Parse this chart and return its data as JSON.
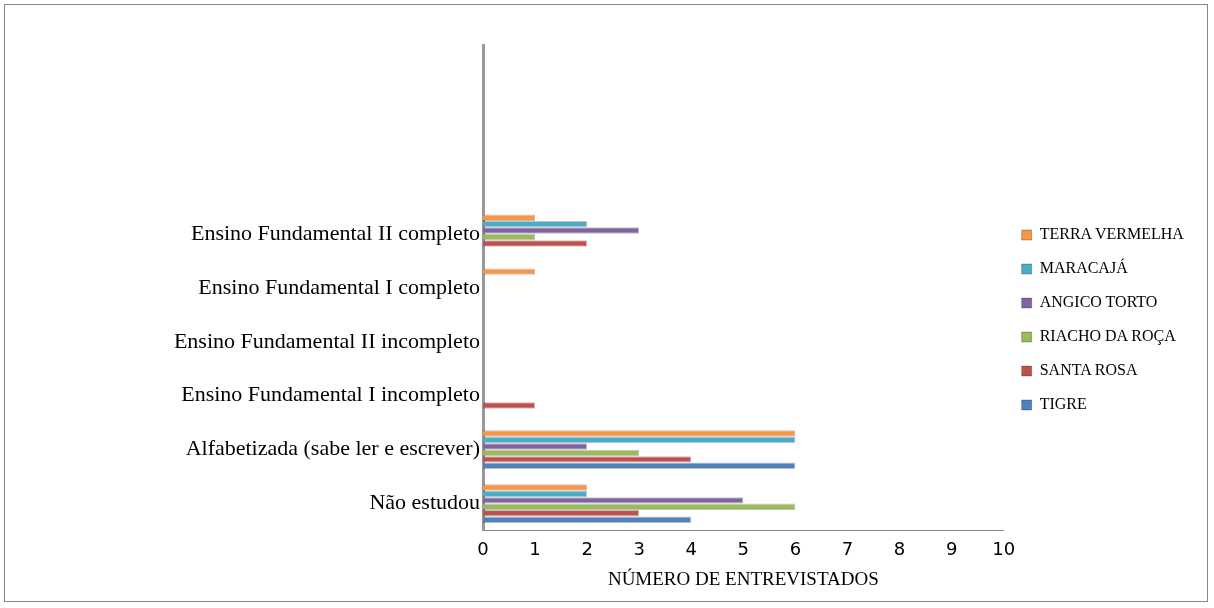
{
  "chart_data": {
    "type": "bar",
    "orientation": "horizontal",
    "xlabel": "NÚMERO DE ENTREVISTADOS",
    "categories": [
      null,
      null,
      null,
      "Ensino Fundamental II completo",
      "Ensino Fundamental I completo",
      "Ensino Fundamental II incompleto",
      "Ensino Fundamental I incompleto",
      "Alfabetizada (sabe ler e escrever)",
      "Não estudou"
    ],
    "series": [
      {
        "name": "TERRA VERMELHA",
        "color": "#f79646",
        "values": [
          null,
          null,
          null,
          1,
          1,
          0,
          0,
          6,
          2
        ]
      },
      {
        "name": "MARACAJÁ",
        "color": "#4bacc6",
        "values": [
          null,
          null,
          null,
          2,
          0,
          0,
          0,
          6,
          2
        ]
      },
      {
        "name": "ANGICO TORTO",
        "color": "#8064a2",
        "values": [
          null,
          null,
          null,
          3,
          0,
          0,
          0,
          2,
          5
        ]
      },
      {
        "name": "RIACHO DA ROÇA",
        "color": "#9bbb59",
        "values": [
          null,
          null,
          null,
          1,
          0,
          0,
          0,
          3,
          6
        ]
      },
      {
        "name": "SANTA ROSA",
        "color": "#c0504d",
        "values": [
          null,
          null,
          null,
          2,
          0,
          0,
          1,
          4,
          3
        ]
      },
      {
        "name": "TIGRE",
        "color": "#4f81bd",
        "values": [
          null,
          null,
          null,
          0,
          0,
          0,
          0,
          6,
          4
        ]
      }
    ],
    "xlim": [
      0,
      10
    ],
    "xticks": [
      0,
      1,
      2,
      3,
      4,
      5,
      6,
      7,
      8,
      9,
      10
    ],
    "grid": false,
    "legend": "right"
  }
}
